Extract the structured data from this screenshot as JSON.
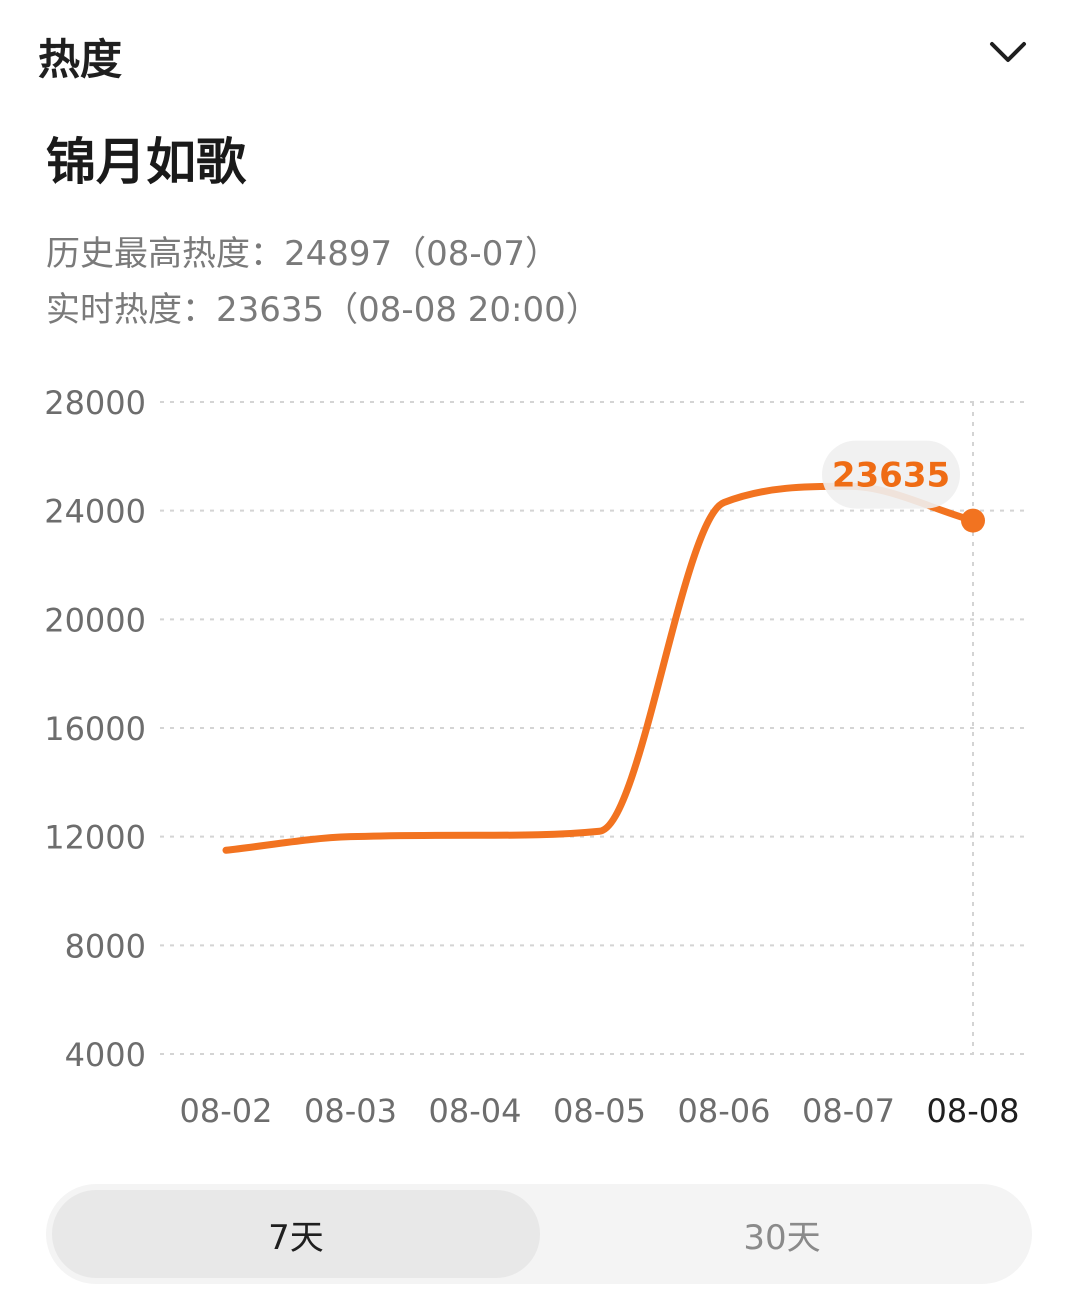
{
  "header": {
    "title": "热度"
  },
  "topic": {
    "title": "锦月如歌"
  },
  "stats": {
    "history_peak": "历史最高热度：24897（08-07）",
    "realtime": "实时热度：23635（08-08 20:00）"
  },
  "tabs": [
    {
      "label": "7天",
      "active": true
    },
    {
      "label": "30天",
      "active": false
    }
  ],
  "colors": {
    "line": "#f27320",
    "grid": "#d4d4d4",
    "axis_text": "#6d6d6d",
    "axis_text_highlight": "#1f1f1f",
    "tooltip_bg": "#efefef",
    "tooltip_text": "#ef6c14"
  },
  "chart_data": {
    "type": "line",
    "categories": [
      "08-02",
      "08-03",
      "08-04",
      "08-05",
      "08-06",
      "08-07",
      "08-08"
    ],
    "y_ticks": [
      4000,
      8000,
      12000,
      16000,
      20000,
      24000,
      28000
    ],
    "ylim": [
      4000,
      28000
    ],
    "grid": true,
    "highlight_category": "08-08",
    "tooltip": "23635",
    "series": [
      {
        "values": [
          11500,
          12000,
          12050,
          12200,
          24300,
          24897,
          23635
        ]
      }
    ]
  }
}
